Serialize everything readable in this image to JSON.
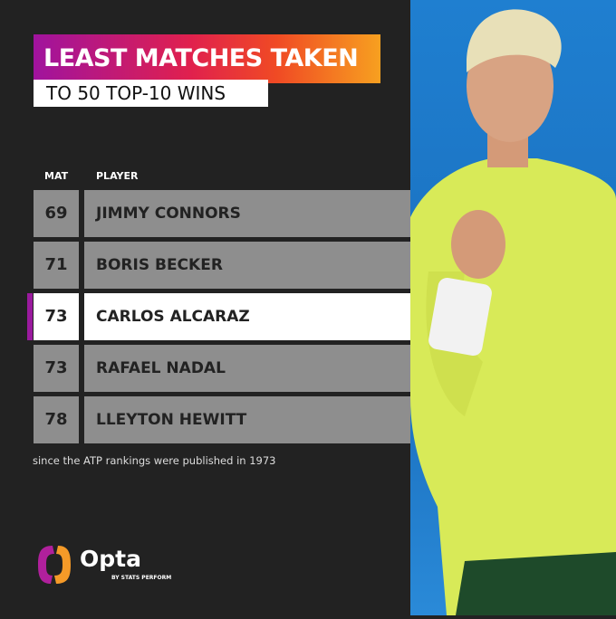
{
  "title": "LEAST MATCHES TAKEN",
  "subtitle": "TO 50 TOP-10 WINS",
  "headers": {
    "mat": "MAT",
    "player": "PLAYER"
  },
  "rows": [
    {
      "mat": "69",
      "player": "JIMMY CONNORS",
      "highlight": false
    },
    {
      "mat": "71",
      "player": "BORIS BECKER",
      "highlight": false
    },
    {
      "mat": "73",
      "player": "CARLOS ALCARAZ",
      "highlight": true
    },
    {
      "mat": "73",
      "player": "RAFAEL NADAL",
      "highlight": false
    },
    {
      "mat": "78",
      "player": "LLEYTON HEWITT",
      "highlight": false
    }
  ],
  "note": "since the ATP rankings were published in 1973",
  "logo": {
    "name": "Opta",
    "tagline": "BY STATS PERFORM"
  },
  "colors": {
    "background": "#222222",
    "highlight_bar": "#9a1a9e",
    "row": "#8e8e8e",
    "gradient_start": "#a0139e",
    "gradient_end": "#f7a020"
  }
}
